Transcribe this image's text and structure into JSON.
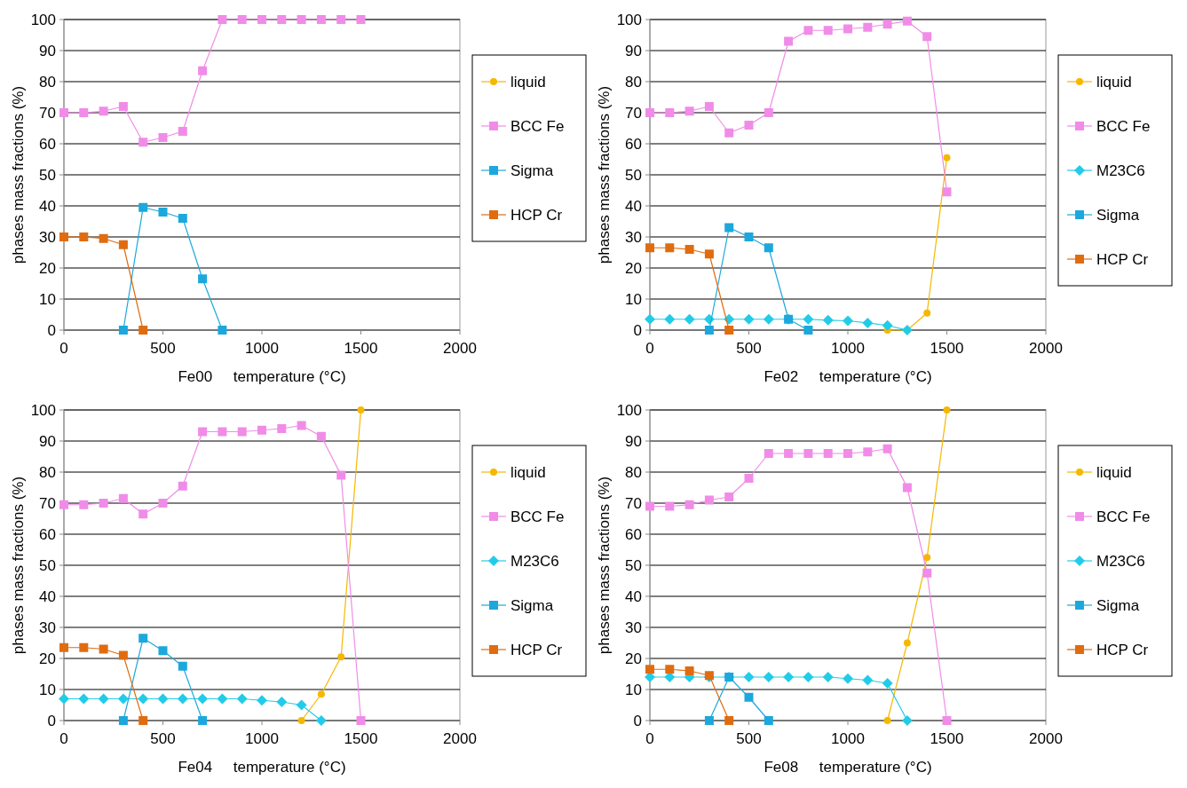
{
  "chart_data": [
    {
      "type": "line",
      "xlabel": "Fe00     temperature (°C)",
      "ylabel": "phases mass fractions (%)",
      "xlim": [
        0,
        2000
      ],
      "xticks": [
        0,
        500,
        1000,
        1500,
        2000
      ],
      "ylim": [
        0,
        100
      ],
      "yticks": [
        0,
        10,
        20,
        30,
        40,
        50,
        60,
        70,
        80,
        90,
        100
      ],
      "grid": "y",
      "legend": "right",
      "series": [
        {
          "name": "liquid",
          "color": "#f5b800",
          "marker": "circle"
        },
        {
          "name": "BCC Fe",
          "color": "#f08ce8",
          "marker": "square",
          "x": [
            0,
            100,
            200,
            300,
            400,
            500,
            600,
            700,
            800,
            900,
            1000,
            1100,
            1200,
            1300,
            1400,
            1500
          ],
          "values": [
            70,
            70,
            70.5,
            72,
            60.5,
            62,
            64,
            83.5,
            100,
            100,
            100,
            100,
            100,
            100,
            100,
            100
          ]
        },
        {
          "name": "Sigma",
          "color": "#1ca8dc",
          "marker": "square",
          "x": [
            300,
            400,
            500,
            600,
            700,
            800
          ],
          "values": [
            0,
            39.5,
            38,
            36,
            16.5,
            0
          ]
        },
        {
          "name": "HCP Cr",
          "color": "#e06c10",
          "marker": "square",
          "x": [
            0,
            100,
            200,
            300,
            400
          ],
          "values": [
            30,
            30,
            29.5,
            27.5,
            0
          ]
        }
      ]
    },
    {
      "type": "line",
      "xlabel": "Fe02     temperature (°C)",
      "ylabel": "phases mass fractions (%)",
      "xlim": [
        0,
        2000
      ],
      "xticks": [
        0,
        500,
        1000,
        1500,
        2000
      ],
      "ylim": [
        0,
        100
      ],
      "yticks": [
        0,
        10,
        20,
        30,
        40,
        50,
        60,
        70,
        80,
        90,
        100
      ],
      "grid": "y",
      "legend": "right",
      "series": [
        {
          "name": "liquid",
          "color": "#f5b800",
          "marker": "circle",
          "x": [
            1200,
            1300,
            1400,
            1500
          ],
          "values": [
            0,
            0,
            5.5,
            55.5
          ]
        },
        {
          "name": "BCC Fe",
          "color": "#f08ce8",
          "marker": "square",
          "x": [
            0,
            100,
            200,
            300,
            400,
            500,
            600,
            700,
            800,
            900,
            1000,
            1100,
            1200,
            1300,
            1400,
            1500
          ],
          "values": [
            70,
            70,
            70.5,
            72,
            63.5,
            66,
            70,
            93,
            96.5,
            96.5,
            97,
            97.5,
            98.5,
            99.5,
            94.5,
            44.5
          ]
        },
        {
          "name": "M23C6",
          "color": "#22cce8",
          "marker": "diamond",
          "x": [
            0,
            100,
            200,
            300,
            400,
            500,
            600,
            700,
            800,
            900,
            1000,
            1100,
            1200,
            1300
          ],
          "values": [
            3.5,
            3.5,
            3.5,
            3.5,
            3.5,
            3.5,
            3.5,
            3.5,
            3.5,
            3.2,
            3,
            2.3,
            1.5,
            0
          ]
        },
        {
          "name": "Sigma",
          "color": "#1ca8dc",
          "marker": "square",
          "x": [
            300,
            400,
            500,
            600,
            700,
            800
          ],
          "values": [
            0,
            33,
            30,
            26.5,
            3.5,
            0
          ]
        },
        {
          "name": "HCP Cr",
          "color": "#e06c10",
          "marker": "square",
          "x": [
            0,
            100,
            200,
            300,
            400
          ],
          "values": [
            26.5,
            26.5,
            26,
            24.5,
            0
          ]
        }
      ]
    },
    {
      "type": "line",
      "xlabel": "Fe04     temperature (°C)",
      "ylabel": "phases mass fractions (%)",
      "xlim": [
        0,
        2000
      ],
      "xticks": [
        0,
        500,
        1000,
        1500,
        2000
      ],
      "ylim": [
        0,
        100
      ],
      "yticks": [
        0,
        10,
        20,
        30,
        40,
        50,
        60,
        70,
        80,
        90,
        100
      ],
      "grid": "y",
      "legend": "right",
      "series": [
        {
          "name": "liquid",
          "color": "#f5b800",
          "marker": "circle",
          "x": [
            1200,
            1300,
            1400,
            1500
          ],
          "values": [
            0,
            8.5,
            20.5,
            100
          ]
        },
        {
          "name": "BCC Fe",
          "color": "#f08ce8",
          "marker": "square",
          "x": [
            0,
            100,
            200,
            300,
            400,
            500,
            600,
            700,
            800,
            900,
            1000,
            1100,
            1200,
            1300,
            1400,
            1500
          ],
          "values": [
            69.5,
            69.5,
            70,
            71.5,
            66.5,
            70,
            75.5,
            93,
            93,
            93,
            93.5,
            94,
            95,
            91.5,
            79,
            0
          ]
        },
        {
          "name": "M23C6",
          "color": "#22cce8",
          "marker": "diamond",
          "x": [
            0,
            100,
            200,
            300,
            400,
            500,
            600,
            700,
            800,
            900,
            1000,
            1100,
            1200,
            1300
          ],
          "values": [
            7,
            7,
            7,
            7,
            7,
            7,
            7,
            7,
            7,
            7,
            6.5,
            6,
            5,
            0
          ]
        },
        {
          "name": "Sigma",
          "color": "#1ca8dc",
          "marker": "square",
          "x": [
            300,
            400,
            500,
            600,
            700
          ],
          "values": [
            0,
            26.5,
            22.5,
            17.5,
            0
          ]
        },
        {
          "name": "HCP Cr",
          "color": "#e06c10",
          "marker": "square",
          "x": [
            0,
            100,
            200,
            300,
            400
          ],
          "values": [
            23.5,
            23.5,
            23,
            21,
            0
          ]
        }
      ]
    },
    {
      "type": "line",
      "xlabel": "Fe08     temperature (°C)",
      "ylabel": "phases mass fractions (%)",
      "xlim": [
        0,
        2000
      ],
      "xticks": [
        0,
        500,
        1000,
        1500,
        2000
      ],
      "ylim": [
        0,
        100
      ],
      "yticks": [
        0,
        10,
        20,
        30,
        40,
        50,
        60,
        70,
        80,
        90,
        100
      ],
      "grid": "y",
      "legend": "right",
      "series": [
        {
          "name": "liquid",
          "color": "#f5b800",
          "marker": "circle",
          "x": [
            1200,
            1300,
            1400,
            1500
          ],
          "values": [
            0,
            25,
            52.5,
            100
          ]
        },
        {
          "name": "BCC Fe",
          "color": "#f08ce8",
          "marker": "square",
          "x": [
            0,
            100,
            200,
            300,
            400,
            500,
            600,
            700,
            800,
            900,
            1000,
            1100,
            1200,
            1300,
            1400,
            1500
          ],
          "values": [
            69,
            69,
            69.5,
            71,
            72,
            78,
            86,
            86,
            86,
            86,
            86,
            86.5,
            87.5,
            75,
            47.5,
            0
          ]
        },
        {
          "name": "M23C6",
          "color": "#22cce8",
          "marker": "diamond",
          "x": [
            0,
            100,
            200,
            300,
            400,
            500,
            600,
            700,
            800,
            900,
            1000,
            1100,
            1200,
            1300
          ],
          "values": [
            14,
            14,
            14,
            14,
            14,
            14,
            14,
            14,
            14,
            14,
            13.5,
            13,
            12,
            0
          ]
        },
        {
          "name": "Sigma",
          "color": "#1ca8dc",
          "marker": "square",
          "x": [
            300,
            400,
            500,
            600
          ],
          "values": [
            0,
            14,
            7.5,
            0
          ]
        },
        {
          "name": "HCP Cr",
          "color": "#e06c10",
          "marker": "square",
          "x": [
            0,
            100,
            200,
            300,
            400
          ],
          "values": [
            16.5,
            16.5,
            16,
            14.5,
            0
          ]
        }
      ]
    }
  ]
}
